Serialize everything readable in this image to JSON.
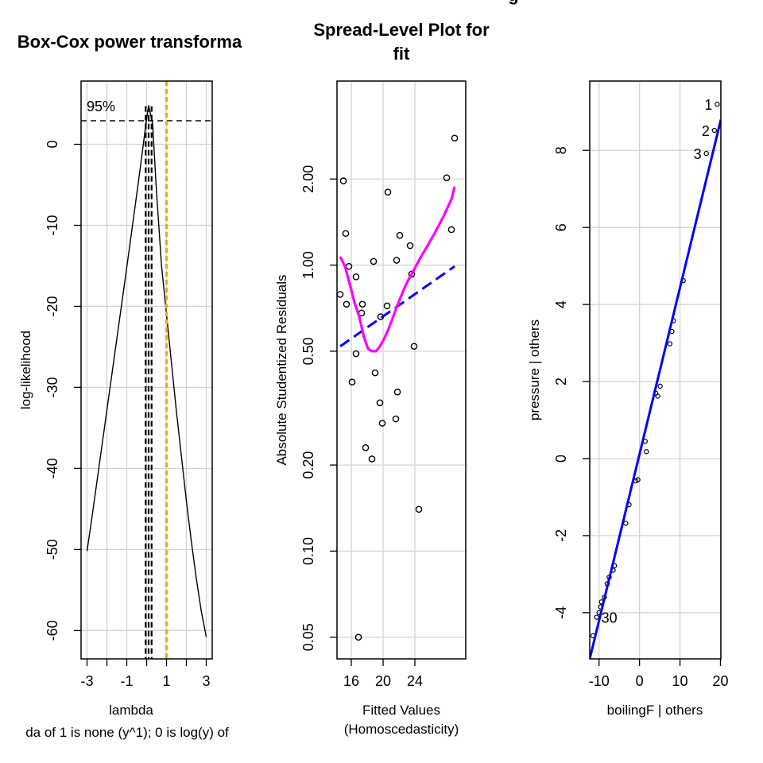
{
  "chart_data": [
    {
      "type": "line",
      "title": "Box-Cox power transforma",
      "xlabel": "lambda",
      "ylabel": "log-likelihood",
      "subtitle": "da of 1 is none (y^1); 0 is log(y) of",
      "ci_label": "95%",
      "x_ticks": [
        "-3",
        "-1",
        "1",
        "3"
      ],
      "y_ticks": [
        "0",
        "-10",
        "-20",
        "-30",
        "-40",
        "-50",
        "-60"
      ],
      "x_tick_values": [
        -3,
        -2,
        -1,
        0,
        1,
        2,
        3
      ],
      "y_tick_values": [
        0,
        -10,
        -20,
        -30,
        -40,
        -50,
        -60
      ],
      "xlim": [
        -3.3,
        3.3
      ],
      "ylim": [
        -63.5,
        7.8
      ],
      "grid": true,
      "curve": {
        "x": [
          -3.0,
          -2.75,
          -2.5,
          -2.25,
          -2.0,
          -1.75,
          -1.5,
          -1.25,
          -1.0,
          -0.75,
          -0.5,
          -0.25,
          0.0,
          0.1,
          0.3,
          0.5,
          0.75,
          1.0,
          1.25,
          1.5,
          1.75,
          2.0,
          2.25,
          2.5,
          2.75,
          3.0
        ],
        "y": [
          -50.2,
          -46.0,
          -41.6,
          -37.2,
          -32.8,
          -28.4,
          -24.0,
          -19.6,
          -15.2,
          -10.7,
          -6.2,
          -1.6,
          3.2,
          4.8,
          2.5,
          -6.0,
          -15.0,
          -21.0,
          -27.0,
          -33.0,
          -38.5,
          -44.0,
          -49.0,
          -53.6,
          -57.6,
          -60.8
        ]
      },
      "ci_level_y": 2.9,
      "lambda_ci": [
        -0.05,
        0.25
      ],
      "lambda_hat": 0.1,
      "reference_lambda": 1,
      "colors": {
        "curve": "#000000",
        "ci": "#000000",
        "reference": "#F5A800"
      }
    },
    {
      "type": "scatter",
      "title": "Spread-Level Plot for\nfit",
      "xlabel": "Fitted Values\n(Homoscedasticity)",
      "ylabel": "Absolute Studentized Residuals",
      "x_ticks": [
        "16",
        "20",
        "24"
      ],
      "x_tick_values": [
        16,
        20,
        24
      ],
      "y_ticks": [
        "0.05",
        "0.10",
        "0.20",
        "0.50",
        "1.00",
        "2.00"
      ],
      "y_tick_values": [
        0.05,
        0.1,
        0.2,
        0.5,
        1.0,
        2.0
      ],
      "y_log_scale": true,
      "xlim": [
        14.2,
        30.4
      ],
      "ylim": [
        0.042,
        4.4
      ],
      "grid": true,
      "points": [
        [
          14.6,
          0.79
        ],
        [
          15.0,
          1.97
        ],
        [
          15.4,
          0.73
        ],
        [
          15.3,
          1.29
        ],
        [
          15.7,
          0.99
        ],
        [
          16.1,
          0.39
        ],
        [
          16.6,
          0.49
        ],
        [
          16.6,
          0.91
        ],
        [
          16.9,
          0.05
        ],
        [
          17.3,
          0.68
        ],
        [
          17.4,
          0.73
        ],
        [
          17.8,
          0.23
        ],
        [
          18.6,
          0.21
        ],
        [
          18.8,
          1.03
        ],
        [
          19.0,
          0.42
        ],
        [
          19.6,
          0.33
        ],
        [
          19.7,
          0.66
        ],
        [
          19.9,
          0.28
        ],
        [
          20.5,
          0.72
        ],
        [
          20.6,
          1.8
        ],
        [
          21.6,
          0.29
        ],
        [
          21.7,
          1.04
        ],
        [
          21.8,
          0.36
        ],
        [
          22.1,
          1.27
        ],
        [
          23.4,
          1.17
        ],
        [
          23.6,
          0.93
        ],
        [
          23.9,
          0.52
        ],
        [
          24.5,
          0.14
        ],
        [
          28.0,
          2.02
        ],
        [
          28.6,
          1.33
        ],
        [
          29.0,
          2.78
        ]
      ],
      "fit_line": {
        "x": [
          14.6,
          29.0
        ],
        "y": [
          0.52,
          0.99
        ]
      },
      "smooth": {
        "x": [
          14.6,
          15.2,
          15.8,
          16.4,
          17.0,
          17.6,
          18.1,
          18.6,
          19.1,
          19.6,
          20.1,
          20.6,
          21.1,
          21.6,
          22.1,
          22.6,
          23.1,
          23.6,
          24.6,
          25.6,
          26.6,
          27.6,
          28.6,
          29.0
        ],
        "y": [
          1.07,
          0.99,
          0.86,
          0.74,
          0.66,
          0.56,
          0.51,
          0.5,
          0.5,
          0.52,
          0.55,
          0.59,
          0.64,
          0.7,
          0.76,
          0.82,
          0.88,
          0.93,
          1.05,
          1.17,
          1.31,
          1.48,
          1.7,
          1.88
        ]
      },
      "colors": {
        "points": "#000000",
        "fit": "#0000FF",
        "smooth": "#FF00FF"
      }
    },
    {
      "type": "scatter",
      "title": "",
      "xlabel": "boilingF | others",
      "ylabel": "pressure  | others",
      "x_ticks": [
        "-10",
        "0",
        "10",
        "20"
      ],
      "x_tick_values": [
        -10,
        0,
        10,
        20
      ],
      "y_ticks": [
        "-4",
        "-2",
        "0",
        "2",
        "4",
        "6",
        "8"
      ],
      "y_tick_values": [
        -4,
        -2,
        0,
        2,
        4,
        6,
        8
      ],
      "xlim": [
        -12.3,
        20.1
      ],
      "ylim": [
        -5.2,
        9.8
      ],
      "grid": true,
      "points": [
        [
          -11.5,
          -4.6
        ],
        [
          -10.6,
          -4.12
        ],
        [
          -10.0,
          -4.0
        ],
        [
          -9.6,
          -3.85
        ],
        [
          -9.4,
          -3.72
        ],
        [
          -8.7,
          -3.6
        ],
        [
          -8.0,
          -3.25
        ],
        [
          -7.5,
          -3.08
        ],
        [
          -6.5,
          -2.9
        ],
        [
          -6.2,
          -2.78
        ],
        [
          -3.4,
          -1.68
        ],
        [
          -2.6,
          -1.2
        ],
        [
          -0.9,
          -0.58
        ],
        [
          -0.4,
          -0.55
        ],
        [
          1.4,
          0.45
        ],
        [
          1.7,
          0.18
        ],
        [
          4.0,
          1.7
        ],
        [
          4.5,
          1.62
        ],
        [
          5.1,
          1.88
        ],
        [
          7.5,
          2.98
        ],
        [
          8.0,
          3.3
        ],
        [
          8.4,
          3.58
        ],
        [
          10.8,
          4.62
        ],
        [
          16.5,
          7.92
        ],
        [
          18.5,
          8.52
        ],
        [
          19.2,
          9.2
        ]
      ],
      "point_labels": [
        {
          "text": "1",
          "x": 19.2,
          "y": 9.2
        },
        {
          "text": "2",
          "x": 18.5,
          "y": 8.52
        },
        {
          "text": "3",
          "x": 16.5,
          "y": 7.92
        },
        {
          "text": "30",
          "x": -10.6,
          "y": -4.12
        }
      ],
      "fit_line": {
        "x": [
          -12.3,
          20.1
        ],
        "y": [
          -5.2,
          8.8
        ]
      },
      "colors": {
        "points": "#000000",
        "fit": "#0000FF"
      }
    }
  ]
}
